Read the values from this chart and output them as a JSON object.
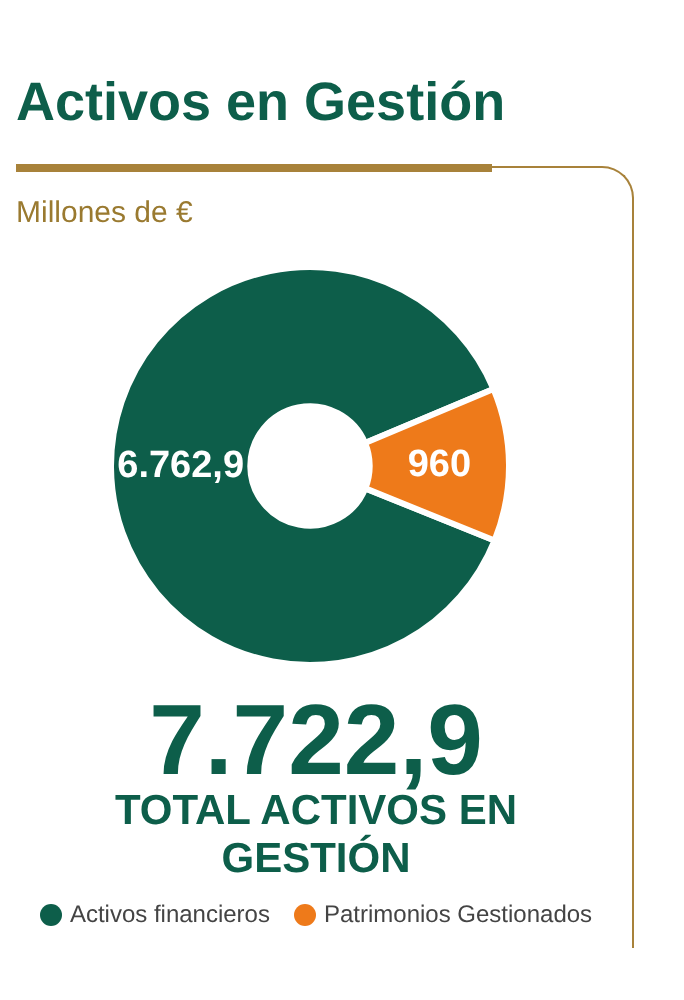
{
  "chart_data": {
    "type": "donut",
    "title": "Activos en Gestión",
    "subtitle": "Millones de €",
    "categories": [
      "Activos financieros",
      "Patrimonios Gestionados"
    ],
    "values": [
      6762.9,
      960
    ],
    "colors": [
      "#0d5e4a",
      "#ee7a1a"
    ],
    "value_labels": [
      "6.762,9",
      "960"
    ],
    "annotations": [
      "7.722,9",
      "TOTAL ACTIVOS EN GESTIÓN"
    ],
    "legend": "bottom"
  }
}
